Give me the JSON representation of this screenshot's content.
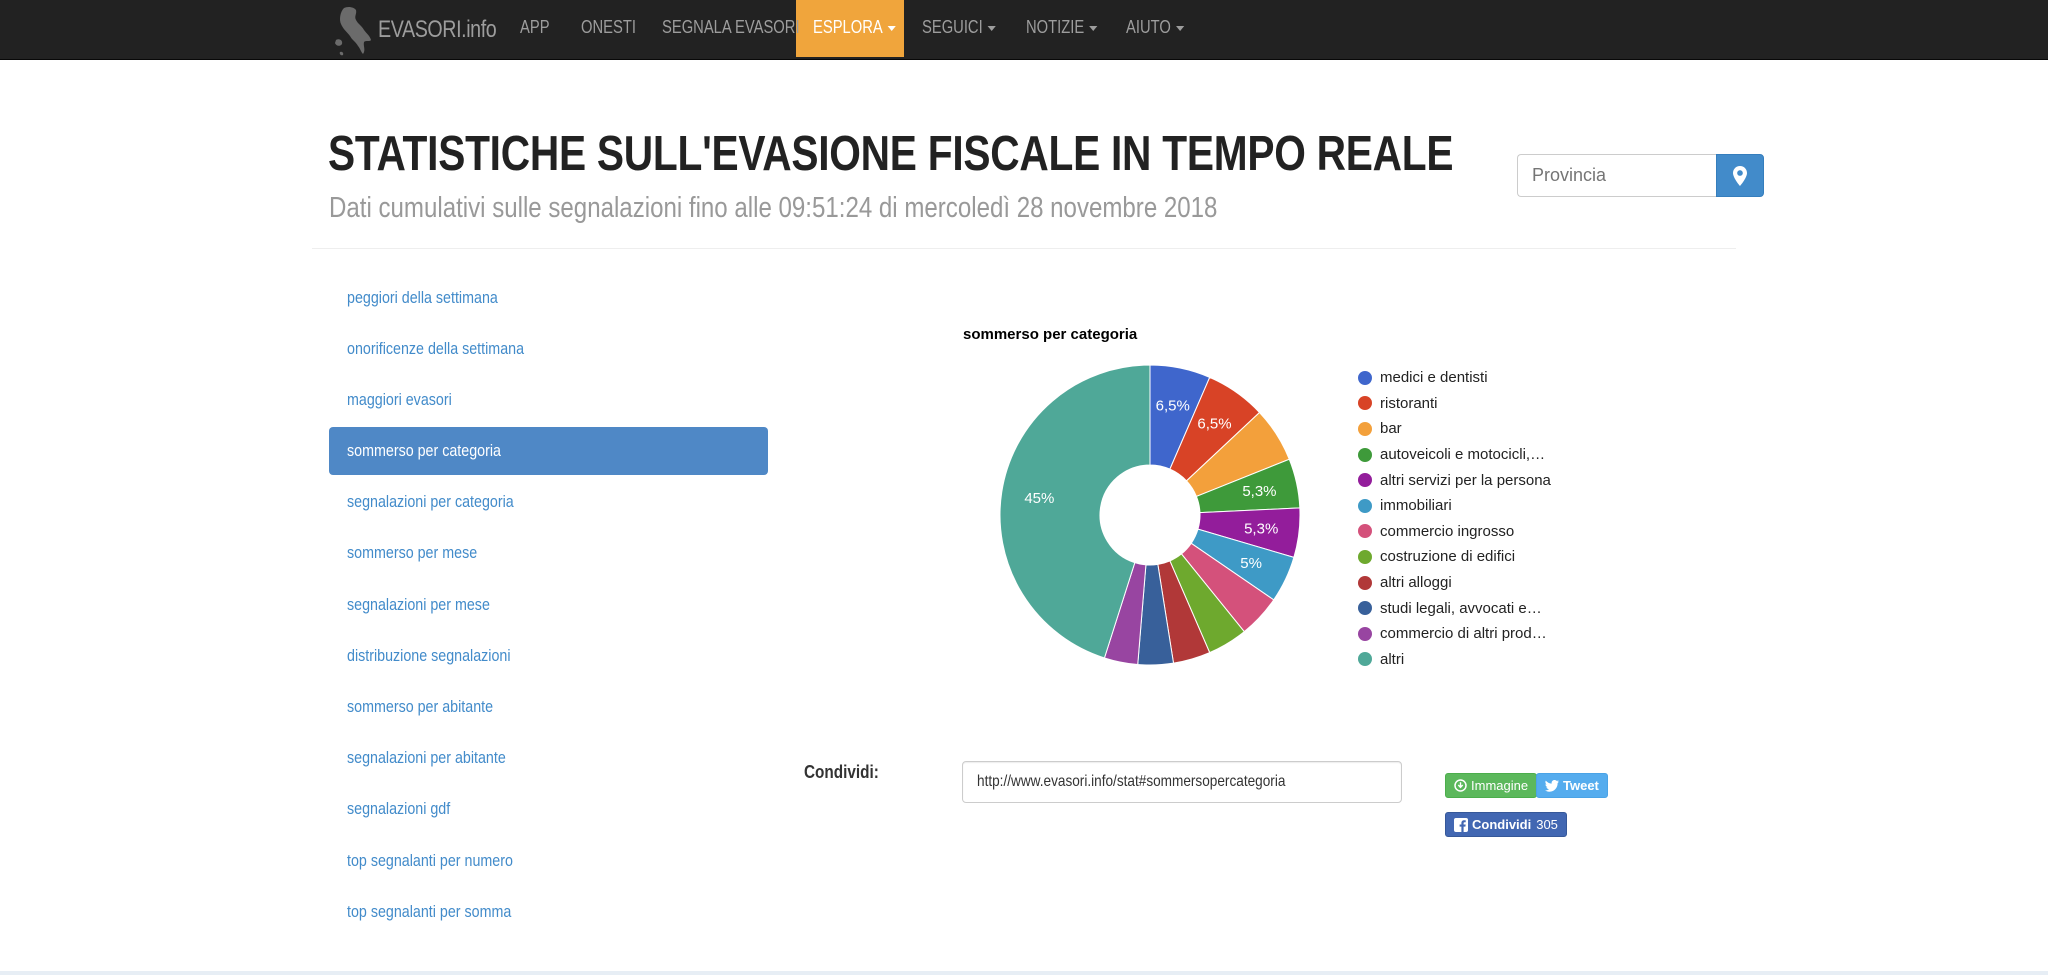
{
  "navbar": {
    "brand": "EVASORI.info",
    "items": [
      {
        "label": "APP",
        "dropdown": false
      },
      {
        "label": "ONESTI",
        "dropdown": false
      },
      {
        "label": "SEGNALA EVASORI",
        "dropdown": false
      },
      {
        "label": "ESPLORA",
        "dropdown": true,
        "active": true
      },
      {
        "label": "SEGUICI",
        "dropdown": true
      },
      {
        "label": "NOTIZIE",
        "dropdown": true
      },
      {
        "label": "AIUTO",
        "dropdown": true
      }
    ]
  },
  "header": {
    "title": "STATISTICHE SULL'EVASIONE FISCALE IN TEMPO REALE",
    "subtitle": "Dati cumulativi sulle segnalazioni fino alle 09:51:24 di mercoledì 28 novembre 2018",
    "province_placeholder": "Provincia",
    "province_button_icon": "map-marker-icon"
  },
  "sidebar": {
    "items": [
      {
        "label": "peggiori della settimana"
      },
      {
        "label": "onorificenze della settimana"
      },
      {
        "label": "maggiori evasori"
      },
      {
        "label": "sommerso per categoria",
        "active": true
      },
      {
        "label": "segnalazioni per categoria"
      },
      {
        "label": "sommerso per mese"
      },
      {
        "label": "segnalazioni per mese"
      },
      {
        "label": "distribuzione segnalazioni"
      },
      {
        "label": "sommerso per abitante"
      },
      {
        "label": "segnalazioni per abitante"
      },
      {
        "label": "segnalazioni gdf"
      },
      {
        "label": "top segnalanti per numero"
      },
      {
        "label": "top segnalanti per somma"
      }
    ]
  },
  "chart_data": {
    "type": "pie",
    "title": "sommerso per categoria",
    "donut": true,
    "legend_position": "right",
    "slices": [
      {
        "label": "medici e dentisti",
        "value": 6.5,
        "display": "6,5%",
        "color": "#3f66cc"
      },
      {
        "label": "ristoranti",
        "value": 6.5,
        "display": "6,5%",
        "color": "#d84326"
      },
      {
        "label": "bar",
        "value": 5.9,
        "display": "",
        "color": "#f3a03b"
      },
      {
        "label": "autoveicoli e motocicli,…",
        "value": 5.3,
        "display": "5,3%",
        "color": "#3e9a3a"
      },
      {
        "label": "altri servizi per la persona",
        "value": 5.3,
        "display": "5,3%",
        "color": "#931d9b"
      },
      {
        "label": "immobiliari",
        "value": 5.0,
        "display": "5%",
        "color": "#3e9ac6"
      },
      {
        "label": "commercio ingrosso",
        "value": 4.6,
        "display": "",
        "color": "#d4517b"
      },
      {
        "label": "costruzione di edifici",
        "value": 4.3,
        "display": "",
        "color": "#6ea92e"
      },
      {
        "label": "altri alloggi",
        "value": 4.0,
        "display": "",
        "color": "#b13838"
      },
      {
        "label": "studi legali, avvocati e…",
        "value": 3.8,
        "display": "",
        "color": "#38609a"
      },
      {
        "label": "commercio di altri prod…",
        "value": 3.6,
        "display": "",
        "color": "#9845a1"
      },
      {
        "label": "altri",
        "value": 45.0,
        "display": "45%",
        "color": "#4fa898"
      }
    ]
  },
  "share": {
    "label": "Condividi:",
    "url": "http://www.evasori.info/stat#sommersopercategoria",
    "image_button": "Immagine",
    "tweet_button": "Tweet",
    "facebook_button": "Condividi",
    "facebook_count": "305",
    "colors": {
      "image": "#5cb85c",
      "tweet": "#55acee",
      "facebook": "#4267b2"
    }
  },
  "colors": {
    "navbar": "#222222",
    "accent": "#f0a53c",
    "link": "#428bca",
    "active_sidebar": "#4f88c6"
  }
}
